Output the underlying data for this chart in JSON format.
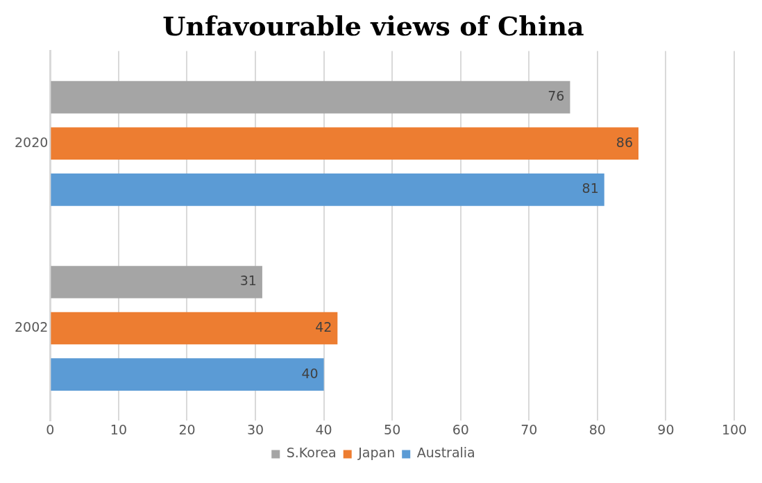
{
  "chart_data": {
    "type": "bar",
    "orientation": "horizontal",
    "title": "Unfavourable views of China",
    "categories": [
      "2020",
      "2002"
    ],
    "series": [
      {
        "name": "S.Korea",
        "color": "#a5a5a5",
        "values": [
          76,
          31
        ]
      },
      {
        "name": "Japan",
        "color": "#ed7d31",
        "values": [
          86,
          42
        ]
      },
      {
        "name": "Australia",
        "color": "#5b9bd5",
        "values": [
          81,
          40
        ]
      }
    ],
    "xlim": [
      0,
      100
    ],
    "xticks": [
      0,
      10,
      20,
      30,
      40,
      50,
      60,
      70,
      80,
      90,
      100
    ],
    "grid": "x",
    "legend": "bottom",
    "data_labels": true
  }
}
